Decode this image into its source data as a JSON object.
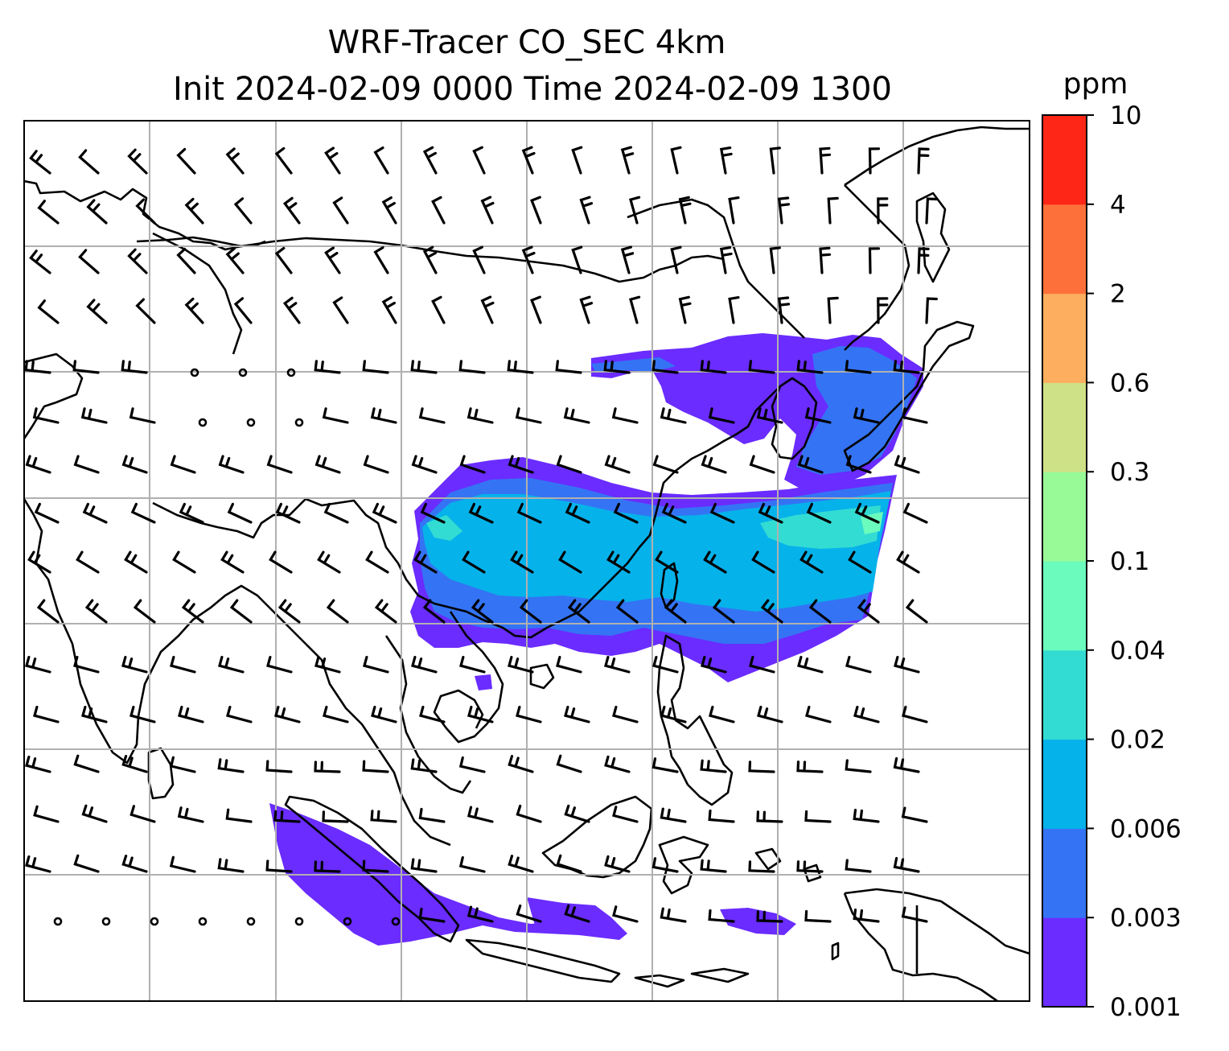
{
  "title": {
    "line1": "WRF-Tracer CO_SEC 4km",
    "line2": "Init 2024-02-09 0000 Time 2024-02-09 1300"
  },
  "colorbar": {
    "unit": "ppm",
    "tick_labels": [
      "0.001",
      "0.003",
      "0.006",
      "0.02",
      "0.04",
      "0.1",
      "0.3",
      "0.6",
      "2",
      "4",
      "10"
    ],
    "colors": [
      "#6a2cff",
      "#3474f4",
      "#06b2ea",
      "#33dcd2",
      "#6afbbd",
      "#98fa96",
      "#cfe187",
      "#fdae5e",
      "#fe703a",
      "#fe2616"
    ]
  },
  "map": {
    "gridlines": true,
    "coastlines": true,
    "wind_barbs": true,
    "shading_variable": "CO_SEC"
  }
}
